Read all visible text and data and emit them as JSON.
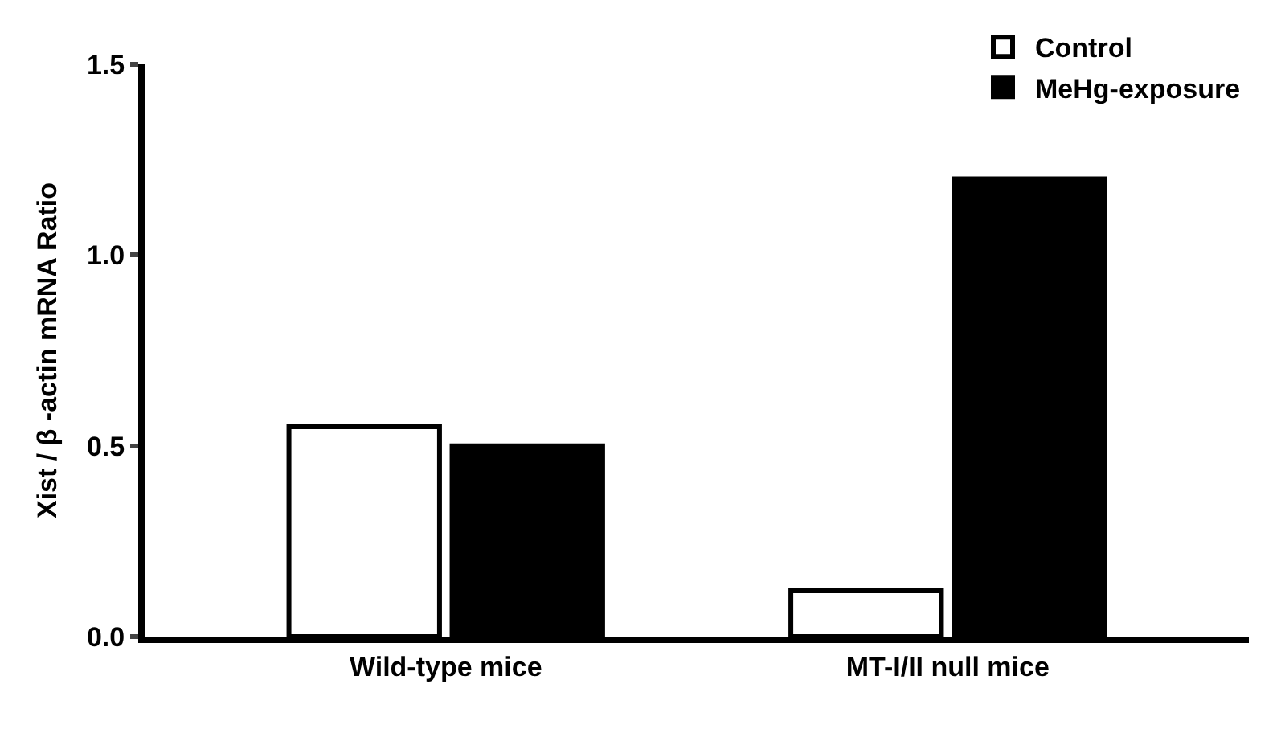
{
  "chart_data": {
    "type": "bar",
    "ylabel": "Xist / β -actin mRNA Ratio",
    "categories": [
      "Wild-type mice",
      "MT-I/II null mice"
    ],
    "series": [
      {
        "name": "Control",
        "color": "#ffffff",
        "values": [
          0.55,
          0.12
        ]
      },
      {
        "name": "MeHg-exposure",
        "color": "#000000",
        "values": [
          0.5,
          1.2
        ]
      }
    ],
    "ylim": [
      0,
      1.5
    ],
    "yticks": [
      {
        "value": 0,
        "label": "0.0"
      },
      0.5,
      {
        "value": 1,
        "label": "1.0"
      },
      1.5
    ],
    "legend": "top right"
  }
}
